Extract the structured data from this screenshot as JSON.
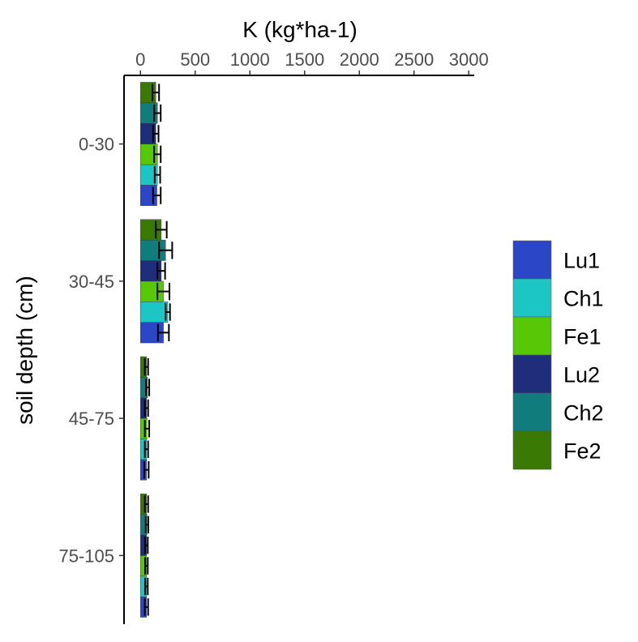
{
  "chart_data": {
    "type": "bar",
    "orientation": "horizontal",
    "title": "",
    "xlabel": "K (kg*ha-1)",
    "ylabel": "soil depth (cm)",
    "x_axis_position": "top",
    "xlim": [
      -150,
      3050
    ],
    "xticks": [
      0,
      500,
      1000,
      1500,
      2000,
      2500,
      3000
    ],
    "categories": [
      "0-30",
      "30-45",
      "45-75",
      "75-105"
    ],
    "series": [
      {
        "name": "Lu1",
        "color": "#2B47C8",
        "values": [
          150,
          210,
          55,
          55
        ],
        "errors": [
          35,
          50,
          20,
          15
        ]
      },
      {
        "name": "Ch1",
        "color": "#1CC6C4",
        "values": [
          155,
          250,
          55,
          55
        ],
        "errors": [
          25,
          20,
          15,
          12
        ]
      },
      {
        "name": "Fe1",
        "color": "#57C806",
        "values": [
          155,
          210,
          60,
          55
        ],
        "errors": [
          30,
          55,
          20,
          12
        ]
      },
      {
        "name": "Lu2",
        "color": "#1F2E7A",
        "values": [
          140,
          190,
          55,
          55
        ],
        "errors": [
          25,
          35,
          15,
          12
        ]
      },
      {
        "name": "Ch2",
        "color": "#107C7B",
        "values": [
          155,
          230,
          65,
          60
        ],
        "errors": [
          30,
          60,
          15,
          12
        ]
      },
      {
        "name": "Fe2",
        "color": "#3A7A04",
        "values": [
          140,
          190,
          55,
          55
        ],
        "errors": [
          30,
          50,
          15,
          15
        ]
      }
    ],
    "legend_placement": "right",
    "grid": false
  }
}
